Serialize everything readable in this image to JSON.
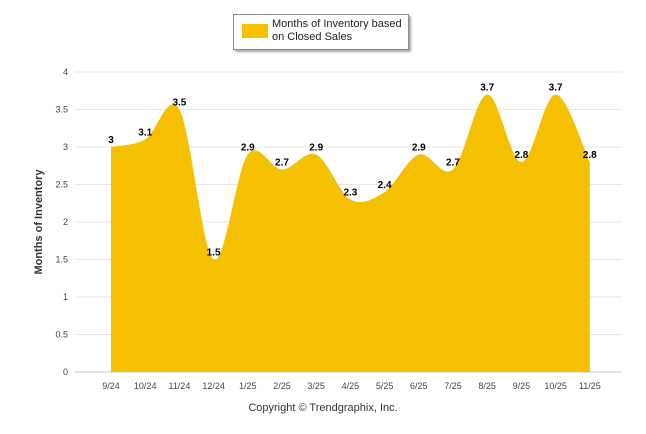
{
  "legend": {
    "label": "Months of Inventory based on Closed Sales"
  },
  "copyright": "Copyright © Trendgraphix, Inc.",
  "colors": {
    "series": "#f5c000",
    "grid": "#e6e6e6"
  },
  "chart_data": {
    "type": "area",
    "categories": [
      "9/24",
      "10/24",
      "11/24",
      "12/24",
      "1/25",
      "2/25",
      "3/25",
      "4/25",
      "5/25",
      "6/25",
      "7/25",
      "8/25",
      "9/25",
      "10/25",
      "11/25"
    ],
    "series": [
      {
        "name": "Months of Inventory based on Closed Sales",
        "values": [
          3,
          3.1,
          3.5,
          1.5,
          2.9,
          2.7,
          2.9,
          2.3,
          2.4,
          2.9,
          2.7,
          3.7,
          2.8,
          3.7,
          2.8
        ]
      }
    ],
    "title": "",
    "xlabel": "",
    "ylabel": "Months of Inventory",
    "ylim": [
      0,
      4
    ],
    "yticks": [
      "0",
      "0.5",
      "1",
      "1.5",
      "2",
      "2.5",
      "3",
      "3.5",
      "4"
    ],
    "grid": true,
    "legend_position": "top-center"
  }
}
